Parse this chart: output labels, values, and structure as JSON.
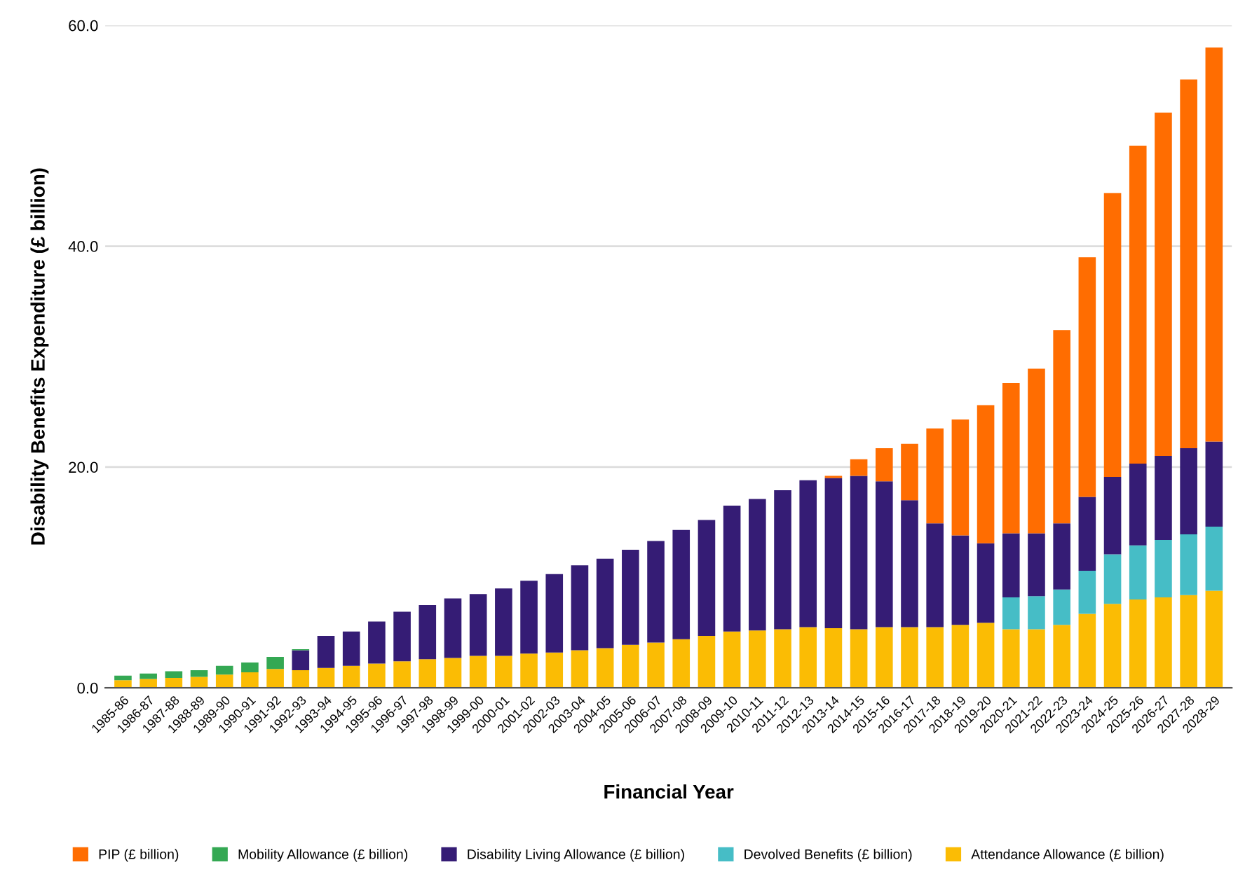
{
  "chart_data": {
    "type": "bar",
    "stacked": true,
    "xlabel": "Financial Year",
    "ylabel": "Disability Benefits Expenditure (£ billion)",
    "categories": [
      "1985-86",
      "1986-87",
      "1987-88",
      "1988-89",
      "1989-90",
      "1990-91",
      "1991-92",
      "1992-93",
      "1993-94",
      "1994-95",
      "1995-96",
      "1996-97",
      "1997-98",
      "1998-99",
      "1999-00",
      "2000-01",
      "2001-02",
      "2002-03",
      "2003-04",
      "2004-05",
      "2005-06",
      "2006-07",
      "2007-08",
      "2008-09",
      "2009-10",
      "2010-11",
      "2011-12",
      "2012-13",
      "2013-14",
      "2014-15",
      "2015-16",
      "2016-17",
      "2017-18",
      "2018-19",
      "2019-20",
      "2020-21",
      "2021-22",
      "2022-23",
      "2023-24",
      "2024-25",
      "2025-26",
      "2026-27",
      "2027-28",
      "2028-29"
    ],
    "series": [
      {
        "name": "Attendance Allowance (£ billion)",
        "color": "#fbbc04",
        "values": [
          0.7,
          0.8,
          0.9,
          1.0,
          1.2,
          1.4,
          1.7,
          1.6,
          1.8,
          2.0,
          2.2,
          2.4,
          2.6,
          2.7,
          2.9,
          2.9,
          3.1,
          3.2,
          3.4,
          3.6,
          3.9,
          4.1,
          4.4,
          4.7,
          5.1,
          5.2,
          5.3,
          5.5,
          5.4,
          5.3,
          5.5,
          5.5,
          5.5,
          5.7,
          5.9,
          5.3,
          5.3,
          5.7,
          6.7,
          7.6,
          8.0,
          8.2,
          8.4,
          8.8
        ]
      },
      {
        "name": "Devolved Benefits (£ billion)",
        "color": "#46bdc6",
        "values": [
          null,
          null,
          null,
          null,
          null,
          null,
          null,
          null,
          null,
          null,
          null,
          null,
          null,
          null,
          null,
          null,
          null,
          null,
          null,
          null,
          null,
          null,
          null,
          null,
          null,
          null,
          null,
          null,
          null,
          null,
          null,
          null,
          null,
          null,
          null,
          2.9,
          3.0,
          3.2,
          3.9,
          4.5,
          4.9,
          5.2,
          5.5,
          5.8
        ]
      },
      {
        "name": "Disability Living Allowance (£ billion)",
        "color": "#351c75",
        "values": [
          null,
          null,
          null,
          null,
          null,
          null,
          null,
          1.8,
          2.9,
          3.1,
          3.8,
          4.5,
          4.9,
          5.4,
          5.6,
          6.1,
          6.6,
          7.1,
          7.7,
          8.1,
          8.6,
          9.2,
          9.9,
          10.5,
          11.4,
          11.9,
          12.6,
          13.3,
          13.6,
          13.9,
          13.2,
          11.5,
          9.4,
          8.1,
          7.2,
          5.8,
          5.7,
          6.0,
          6.7,
          7.0,
          7.4,
          7.6,
          7.8,
          7.7
        ]
      },
      {
        "name": "Mobility Allowance (£ billion)",
        "color": "#34a853",
        "values": [
          0.4,
          0.5,
          0.6,
          0.6,
          0.8,
          0.9,
          1.1,
          0.1,
          null,
          null,
          null,
          null,
          null,
          null,
          null,
          null,
          null,
          null,
          null,
          null,
          null,
          null,
          null,
          null,
          null,
          null,
          null,
          null,
          null,
          null,
          null,
          null,
          null,
          null,
          null,
          null,
          null,
          null,
          null,
          null,
          null,
          null,
          null,
          null
        ]
      },
      {
        "name": "PIP (£ billion)",
        "color": "#ff6d01",
        "values": [
          null,
          null,
          null,
          null,
          null,
          null,
          null,
          null,
          null,
          null,
          null,
          null,
          null,
          null,
          null,
          null,
          null,
          null,
          null,
          null,
          null,
          null,
          null,
          null,
          null,
          null,
          null,
          null,
          0.2,
          1.5,
          3.0,
          5.1,
          8.6,
          10.5,
          12.5,
          13.6,
          14.9,
          17.5,
          21.7,
          25.7,
          28.8,
          31.1,
          33.4,
          35.7
        ]
      }
    ],
    "ylim": [
      0,
      60
    ],
    "yticks": [
      {
        "value": 0,
        "label": "0.0"
      },
      {
        "value": 20,
        "label": "20.0"
      },
      {
        "value": 40,
        "label": "40.0"
      },
      {
        "value": 60,
        "label": "60.0"
      }
    ],
    "grid": "y",
    "legend": "bottom"
  }
}
